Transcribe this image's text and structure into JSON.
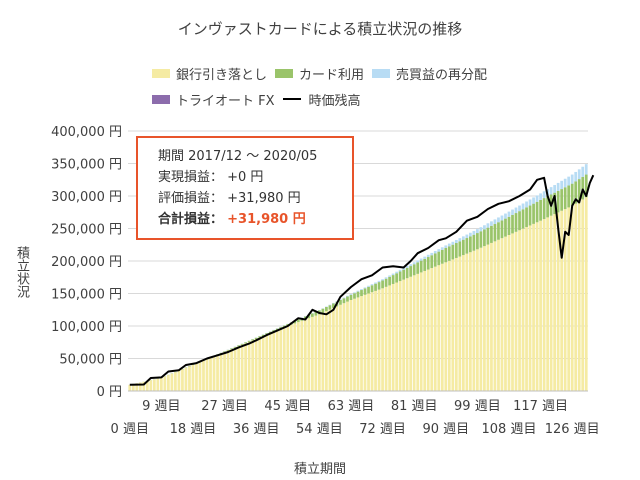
{
  "chart_data": {
    "type": "bar",
    "title": "インヴァストカードによる積立状況の推移",
    "xlabel": "積立期間",
    "ylabel": "積立状況",
    "ylim": [
      0,
      400000
    ],
    "y_ticks": [
      "0 円",
      "50,000 円",
      "100,000 円",
      "150,000 円",
      "200,000 円",
      "250,000 円",
      "300,000 円",
      "350,000 円",
      "400,000 円"
    ],
    "x_ticks_upper": [
      "9 週目",
      "27 週目",
      "45 週目",
      "63 週目",
      "81 週目",
      "99 週目",
      "117 週目"
    ],
    "x_ticks_lower": [
      "0 週目",
      "18 週目",
      "36 週目",
      "54 週目",
      "72 週目",
      "90 週目",
      "108 週目",
      "126 週目"
    ],
    "stacked": true,
    "grid": true,
    "legend_position": "top",
    "week_range": [
      0,
      130
    ],
    "series": [
      {
        "name": "銀行引き落とし",
        "type": "bar",
        "color": "#f5eba3",
        "points": [
          [
            0,
            9500
          ],
          [
            9,
            20000
          ],
          [
            18,
            40000
          ],
          [
            27,
            60000
          ],
          [
            36,
            80000
          ],
          [
            45,
            100000
          ],
          [
            54,
            118000
          ],
          [
            63,
            140000
          ],
          [
            72,
            158000
          ],
          [
            81,
            178000
          ],
          [
            90,
            198000
          ],
          [
            99,
            218000
          ],
          [
            108,
            240000
          ],
          [
            117,
            262000
          ],
          [
            126,
            285000
          ],
          [
            130,
            298000
          ]
        ]
      },
      {
        "name": "カード利用",
        "type": "bar",
        "color": "#9ac46a",
        "points": [
          [
            0,
            0
          ],
          [
            27,
            1000
          ],
          [
            45,
            3000
          ],
          [
            54,
            6000
          ],
          [
            63,
            8000
          ],
          [
            72,
            12000
          ],
          [
            81,
            17000
          ],
          [
            90,
            22000
          ],
          [
            99,
            25000
          ],
          [
            108,
            28000
          ],
          [
            117,
            32000
          ],
          [
            126,
            34000
          ],
          [
            130,
            35000
          ]
        ]
      },
      {
        "name": "売買益の再分配",
        "type": "bar",
        "color": "#b8dcf4",
        "points": [
          [
            0,
            0
          ],
          [
            54,
            500
          ],
          [
            72,
            2000
          ],
          [
            90,
            4000
          ],
          [
            108,
            8000
          ],
          [
            117,
            10000
          ],
          [
            126,
            14000
          ],
          [
            130,
            16000
          ]
        ]
      },
      {
        "name": "トライオート FX",
        "type": "bar",
        "color": "#8c6cac",
        "points": [
          [
            0,
            0
          ],
          [
            130,
            0
          ]
        ]
      },
      {
        "name": "時価残高",
        "type": "line",
        "color": "#000000",
        "points": [
          [
            0,
            9500
          ],
          [
            4,
            10000
          ],
          [
            6,
            20000
          ],
          [
            9,
            21000
          ],
          [
            11,
            30000
          ],
          [
            14,
            32000
          ],
          [
            16,
            40000
          ],
          [
            19,
            43000
          ],
          [
            22,
            50000
          ],
          [
            25,
            55000
          ],
          [
            28,
            60000
          ],
          [
            31,
            67000
          ],
          [
            34,
            73000
          ],
          [
            36,
            78000
          ],
          [
            39,
            86000
          ],
          [
            42,
            93000
          ],
          [
            45,
            100000
          ],
          [
            48,
            112000
          ],
          [
            50,
            110000
          ],
          [
            52,
            125000
          ],
          [
            54,
            120000
          ],
          [
            56,
            118000
          ],
          [
            58,
            125000
          ],
          [
            60,
            145000
          ],
          [
            63,
            160000
          ],
          [
            66,
            172000
          ],
          [
            69,
            178000
          ],
          [
            72,
            190000
          ],
          [
            75,
            192000
          ],
          [
            78,
            190000
          ],
          [
            80,
            200000
          ],
          [
            82,
            212000
          ],
          [
            85,
            220000
          ],
          [
            88,
            232000
          ],
          [
            90,
            235000
          ],
          [
            93,
            245000
          ],
          [
            96,
            262000
          ],
          [
            99,
            268000
          ],
          [
            102,
            280000
          ],
          [
            105,
            288000
          ],
          [
            108,
            292000
          ],
          [
            111,
            300000
          ],
          [
            114,
            310000
          ],
          [
            116,
            325000
          ],
          [
            118,
            328000
          ],
          [
            119,
            300000
          ],
          [
            120,
            285000
          ],
          [
            121,
            300000
          ],
          [
            122,
            250000
          ],
          [
            123,
            205000
          ],
          [
            124,
            245000
          ],
          [
            125,
            240000
          ],
          [
            126,
            285000
          ],
          [
            127,
            295000
          ],
          [
            128,
            290000
          ],
          [
            129,
            310000
          ],
          [
            130,
            300000
          ],
          [
            131,
            320000
          ],
          [
            132,
            332000
          ]
        ]
      }
    ]
  },
  "summary": {
    "period": "期間 2017/12 ～ 2020/05",
    "realized": "実現損益：  +0 円",
    "unrealized": "評価損益：  +31,980 円",
    "total_label": "合計損益：",
    "total_value": "+31,980 円"
  }
}
